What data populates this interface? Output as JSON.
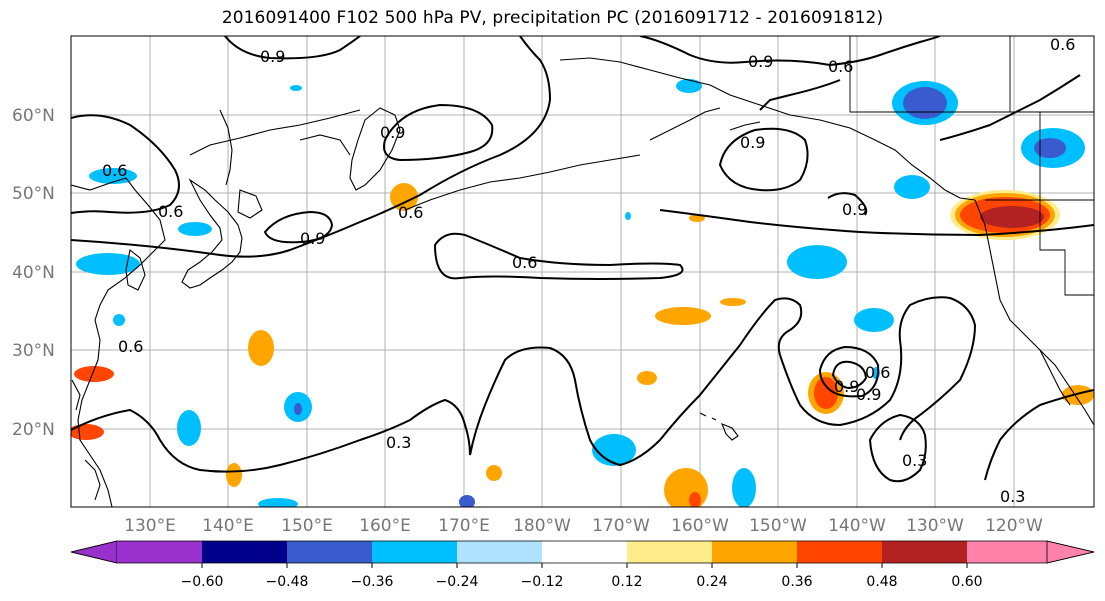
{
  "title": "2016091400 F102 500 hPa PV, precipitation PC (2016091712 - 2016091812)",
  "lat_labels": [
    "60°N",
    "50°N",
    "40°N",
    "30°N",
    "20°N"
  ],
  "lon_labels": [
    "130°E",
    "140°E",
    "150°E",
    "160°E",
    "170°E",
    "180°W",
    "170°W",
    "160°W",
    "150°W",
    "140°W",
    "130°W",
    "120°W"
  ],
  "contour_labels": [
    "0.9",
    "0.9",
    "0.6",
    "0.9",
    "0.6",
    "0.9",
    "0.6",
    "0.9",
    "0.6",
    "0.9",
    "0.6",
    "0.6",
    "0.3",
    "0.9",
    "0.3",
    "0.3",
    "0.9",
    "0.6",
    "0.6"
  ],
  "colorbar": {
    "tick_labels": [
      "−0.60",
      "−0.48",
      "−0.36",
      "−0.24",
      "−0.12",
      "0.12",
      "0.24",
      "0.36",
      "0.48",
      "0.60"
    ],
    "colors": [
      "#9932cc",
      "#00008b",
      "#3a5bcd",
      "#00bfff",
      "#b0e2ff",
      "#ffffff",
      "#ffec8b",
      "#ffa500",
      "#ff4500",
      "#b22222",
      "#ff82ab"
    ]
  }
}
